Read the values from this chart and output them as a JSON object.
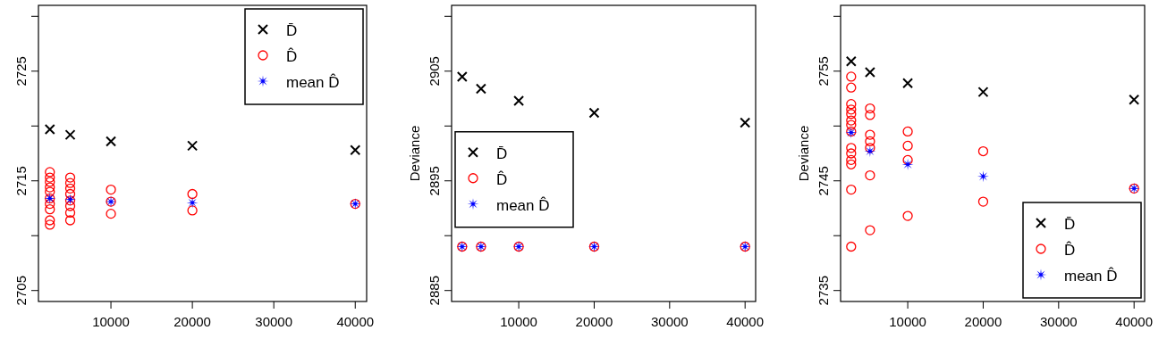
{
  "chart_data": [
    {
      "type": "scatter",
      "xlim": [
        1100,
        41400
      ],
      "ylim": [
        2704,
        2731
      ],
      "xticks": [
        10000,
        20000,
        30000,
        40000
      ],
      "yticks": [
        2705,
        {
          "value": 2710,
          "label": null
        },
        2715,
        {
          "value": 2720,
          "label": null
        },
        2725,
        {
          "value": 2730,
          "label": null
        }
      ],
      "legend": "top right",
      "series": [
        {
          "name": "D̄",
          "color": "#000000",
          "marker": "cross",
          "x": [
            2500,
            5000,
            10000,
            20000,
            40000
          ],
          "values": [
            2719.7,
            2719.2,
            2718.6,
            2718.2,
            2717.8
          ]
        },
        {
          "name": "D̂",
          "color": "#ff0000",
          "marker": "circle",
          "x": [
            2500,
            2500,
            2500,
            2500,
            2500,
            2500,
            2500,
            2500,
            2500,
            2500,
            5000,
            5000,
            5000,
            5000,
            5000,
            5000,
            5000,
            5000,
            10000,
            10000,
            10000,
            20000,
            20000,
            40000
          ],
          "values": [
            2715.8,
            2715.3,
            2714.9,
            2714.4,
            2714.0,
            2713.4,
            2712.9,
            2712.4,
            2711.4,
            2711.0,
            2715.3,
            2714.8,
            2714.3,
            2713.8,
            2713.2,
            2712.7,
            2712.1,
            2711.4,
            2714.2,
            2713.1,
            2712.0,
            2713.8,
            2712.3,
            2712.9
          ]
        },
        {
          "name": "mean D̂",
          "color": "#0000ff",
          "marker": "star",
          "x": [
            2500,
            5000,
            10000,
            20000,
            40000
          ],
          "values": [
            2713.4,
            2713.3,
            2713.1,
            2713.0,
            2712.9
          ]
        }
      ]
    },
    {
      "type": "scatter",
      "ylabel": "Deviance",
      "xlim": [
        1100,
        41400
      ],
      "ylim": [
        2884,
        2911
      ],
      "xticks": [
        10000,
        20000,
        30000,
        40000
      ],
      "yticks": [
        2885,
        {
          "value": 2890,
          "label": null
        },
        2895,
        {
          "value": 2900,
          "label": null
        },
        2905,
        {
          "value": 2910,
          "label": null
        }
      ],
      "legend": "left",
      "series": [
        {
          "name": "D̄",
          "color": "#000000",
          "marker": "cross",
          "x": [
            2500,
            5000,
            10000,
            20000,
            40000
          ],
          "values": [
            2904.5,
            2903.4,
            2902.3,
            2901.2,
            2900.3
          ]
        },
        {
          "name": "D̂",
          "color": "#ff0000",
          "marker": "circle",
          "x": [
            2500,
            5000,
            10000,
            20000,
            40000
          ],
          "values": [
            2889.0,
            2889.0,
            2889.0,
            2889.0,
            2889.0
          ]
        },
        {
          "name": "mean D̂",
          "color": "#0000ff",
          "marker": "star",
          "x": [
            2500,
            5000,
            10000,
            20000,
            40000
          ],
          "values": [
            2889.0,
            2889.0,
            2889.0,
            2889.0,
            2889.0
          ]
        }
      ]
    },
    {
      "type": "scatter",
      "ylabel": "Deviance",
      "xlim": [
        1100,
        41400
      ],
      "ylim": [
        2734,
        2761
      ],
      "xticks": [
        10000,
        20000,
        30000,
        40000
      ],
      "yticks": [
        2735,
        {
          "value": 2740,
          "label": null
        },
        2745,
        {
          "value": 2750,
          "label": null
        },
        2755,
        {
          "value": 2760,
          "label": null
        }
      ],
      "legend": "bottom right",
      "series": [
        {
          "name": "D̄",
          "color": "#000000",
          "marker": "cross",
          "x": [
            2500,
            5000,
            10000,
            20000,
            40000
          ],
          "values": [
            2755.9,
            2754.9,
            2753.9,
            2753.1,
            2752.4
          ]
        },
        {
          "name": "D̂",
          "color": "#ff0000",
          "marker": "circle",
          "x": [
            2500,
            2500,
            2500,
            2500,
            2500,
            2500,
            2500,
            2500,
            2500,
            2500,
            2500,
            2500,
            2500,
            2500,
            5000,
            5000,
            5000,
            5000,
            5000,
            5000,
            5000,
            10000,
            10000,
            10000,
            10000,
            20000,
            20000,
            40000
          ],
          "values": [
            2754.5,
            2753.5,
            2752.0,
            2751.5,
            2751.1,
            2750.5,
            2750.1,
            2749.5,
            2748.0,
            2747.5,
            2746.9,
            2746.5,
            2744.2,
            2739.0,
            2751.6,
            2751.0,
            2749.2,
            2748.6,
            2748.0,
            2745.5,
            2740.5,
            2749.5,
            2748.2,
            2746.9,
            2741.8,
            2747.7,
            2743.1,
            2744.3
          ]
        },
        {
          "name": "mean D̂",
          "color": "#0000ff",
          "marker": "star",
          "x": [
            2500,
            5000,
            10000,
            20000,
            40000
          ],
          "values": [
            2749.4,
            2747.7,
            2746.5,
            2745.4,
            2744.3
          ]
        }
      ]
    }
  ]
}
